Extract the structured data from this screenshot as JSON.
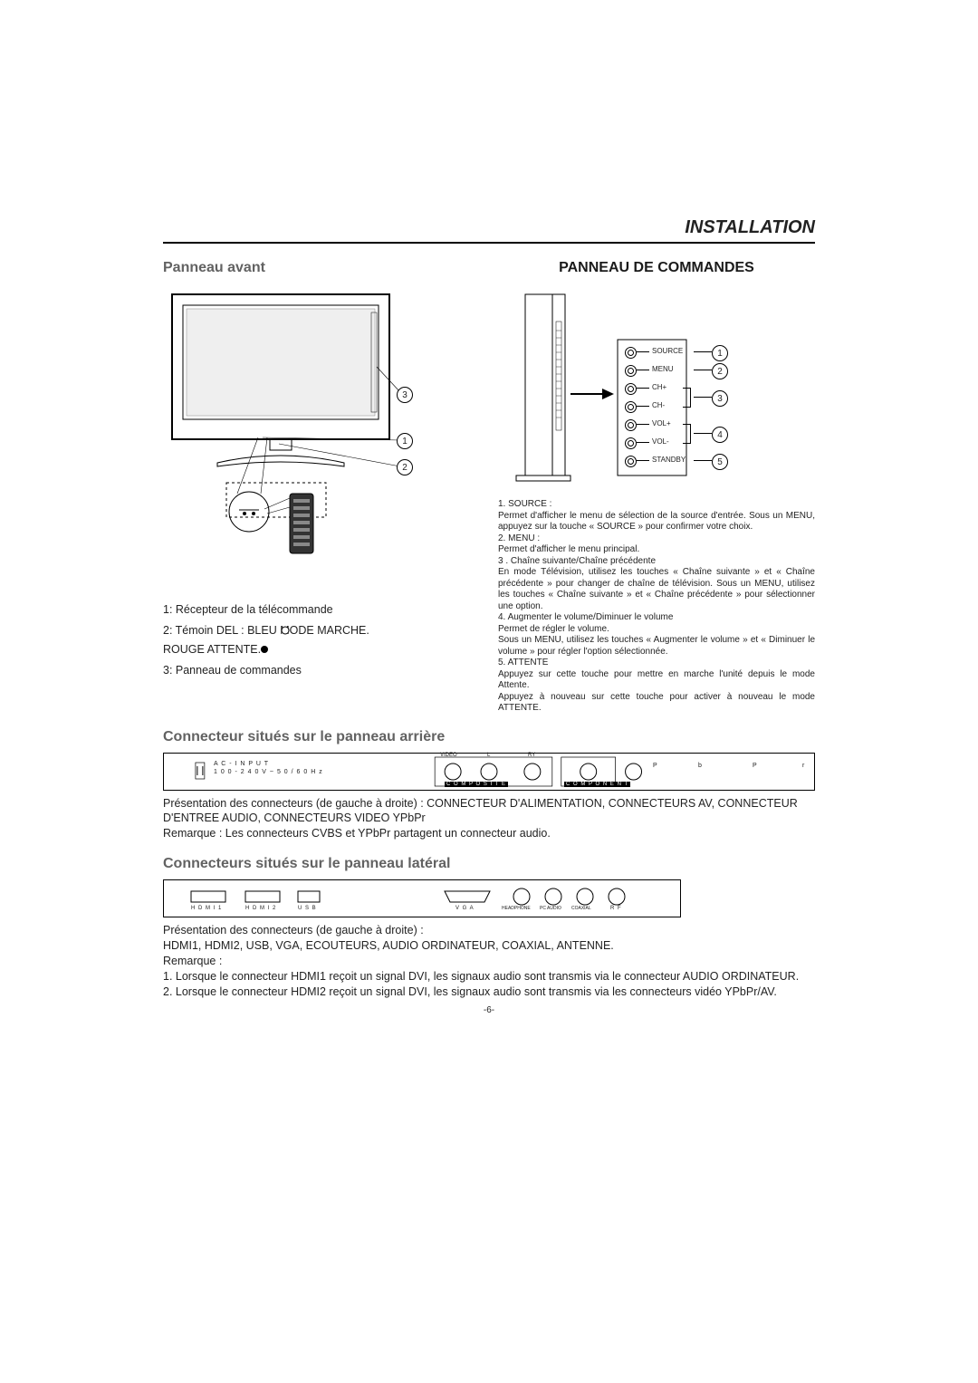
{
  "header": {
    "title": "INSTALLATION"
  },
  "front_panel": {
    "heading": "Panneau avant",
    "items": [
      "1:   Récepteur de la télécommande",
      "2:   Témoin DEL : BLEU       MODE MARCHE.",
      "            ROUGE      ATTENTE.",
      "3:   Panneau de commandes"
    ],
    "callouts": [
      "3",
      "1",
      "2"
    ]
  },
  "control_panel": {
    "heading": "PANNEAU DE COMMANDES",
    "buttons": [
      {
        "label": "SOURCE",
        "num": "1"
      },
      {
        "label": "MENU",
        "num": "2"
      },
      {
        "label": "CH+",
        "num": ""
      },
      {
        "label": "CH-",
        "num": "3"
      },
      {
        "label": "VOL+",
        "num": ""
      },
      {
        "label": "VOL-",
        "num": "4"
      },
      {
        "label": "STANDBY",
        "num": "5"
      }
    ],
    "desc": [
      "1.  SOURCE :",
      "Permet d'afficher le menu de sélection de la source d'entrée. Sous un MENU, appuyez sur la touche « SOURCE » pour confirmer votre choix.",
      "2.  MENU :",
      "Permet d'afficher le menu principal.",
      "3 .  Chaîne suivante/Chaîne précédente",
      "En mode Télévision, utilisez les touches « Chaîne suivante » et « Chaîne précédente » pour changer de chaîne de télévision. Sous un MENU, utilisez les touches « Chaîne suivante » et « Chaîne précédente » pour sélectionner une option.",
      "4.  Augmenter le volume/Diminuer le volume",
      "Permet de régler le volume.",
      "Sous un MENU, utilisez les touches « Augmenter le volume » et « Diminuer le volume » pour régler l'option sélectionnée.",
      "5. ATTENTE",
      "Appuyez sur cette touche pour mettre en marche l'unité depuis le mode Attente.",
      "Appuyez à nouveau sur cette touche pour activer à nouveau le mode ATTENTE."
    ]
  },
  "rear_connectors": {
    "heading": "Connecteur situés sur le panneau arrière",
    "ac_label_1": "A C - I N P U T",
    "ac_label_2": "1 0 0 - 2 4 0 V ~ 5 0 / 6 0 H z",
    "composite_top": [
      "VIDEO",
      "L",
      "RY"
    ],
    "composite_bottom": "C O M P O S I T E",
    "component_bottom": "C O M P O N E N T",
    "right_labels": [
      "P",
      "b",
      "P",
      "r"
    ],
    "desc": [
      "Présentation des connecteurs (de gauche à droite) : CONNECTEUR D'ALIMENTATION, CONNECTEURS AV, CONNECTEUR D'ENTREE AUDIO, CONNECTEURS VIDEO YPbPr",
      "Remarque : Les connecteurs CVBS et YPbPr partagent un connecteur audio."
    ]
  },
  "side_connectors": {
    "heading": "Connecteurs situés sur le panneau latéral",
    "labels_left": [
      "H D M I 1",
      "H D M I 2",
      "U S B"
    ],
    "labels_right": [
      "V G A",
      "HEADPHONE",
      "PC AUDIO",
      "COAXIAL",
      "R F"
    ],
    "desc": [
      "Présentation des connecteurs (de gauche à droite) :",
      "HDMI1, HDMI2, USB, VGA, ECOUTEURS, AUDIO ORDINATEUR, COAXIAL, ANTENNE.",
      "Remarque :",
      "1. Lorsque le connecteur HDMI1 reçoit un signal DVI, les signaux audio sont transmis via le connecteur AUDIO ORDINATEUR.",
      "2. Lorsque le connecteur HDMI2 reçoit un signal DVI, les signaux audio sont transmis via les connecteurs vidéo YPbPr/AV."
    ]
  },
  "page_number": "-6-",
  "colors": {
    "gray_text": "#626262",
    "line": "#000000"
  }
}
